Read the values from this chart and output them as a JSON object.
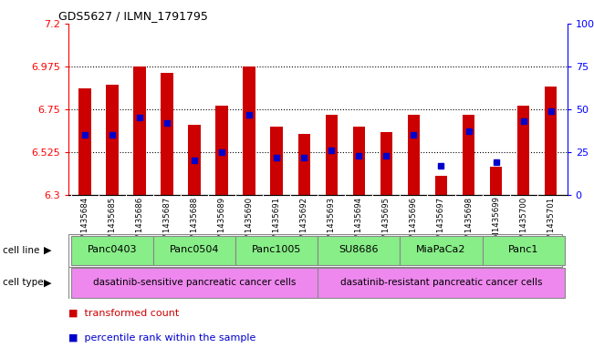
{
  "title": "GDS5627 / ILMN_1791795",
  "samples": [
    "GSM1435684",
    "GSM1435685",
    "GSM1435686",
    "GSM1435687",
    "GSM1435688",
    "GSM1435689",
    "GSM1435690",
    "GSM1435691",
    "GSM1435692",
    "GSM1435693",
    "GSM1435694",
    "GSM1435695",
    "GSM1435696",
    "GSM1435697",
    "GSM1435698",
    "GSM1435699",
    "GSM1435700",
    "GSM1435701"
  ],
  "transformed_counts": [
    6.86,
    6.88,
    6.975,
    6.94,
    6.67,
    6.77,
    6.975,
    6.66,
    6.62,
    6.72,
    6.66,
    6.63,
    6.72,
    6.4,
    6.72,
    6.45,
    6.77,
    6.87
  ],
  "percentile_ranks": [
    35,
    35,
    45,
    42,
    20,
    25,
    47,
    22,
    22,
    26,
    23,
    23,
    35,
    17,
    37,
    19,
    43,
    49
  ],
  "ymin": 6.3,
  "ymax": 7.2,
  "yticks": [
    6.3,
    6.525,
    6.75,
    6.975,
    7.2
  ],
  "ytick_labels": [
    "6.3",
    "6.525",
    "6.75",
    "6.975",
    "7.2"
  ],
  "right_yticks": [
    0,
    25,
    50,
    75,
    100
  ],
  "right_ytick_labels": [
    "0",
    "25",
    "50",
    "75",
    "100%"
  ],
  "bar_color": "#cc0000",
  "marker_color": "#0000cc",
  "bar_width": 0.45,
  "cell_lines": [
    {
      "name": "Panc0403",
      "start": 0,
      "end": 3
    },
    {
      "name": "Panc0504",
      "start": 3,
      "end": 6
    },
    {
      "name": "Panc1005",
      "start": 6,
      "end": 9
    },
    {
      "name": "SU8686",
      "start": 9,
      "end": 12
    },
    {
      "name": "MiaPaCa2",
      "start": 12,
      "end": 15
    },
    {
      "name": "Panc1",
      "start": 15,
      "end": 18
    }
  ],
  "cell_line_bg": "#88ee88",
  "cell_type_bg": "#ee88ee",
  "cell_type_sensitive": "dasatinib-sensitive pancreatic cancer cells",
  "cell_type_resistant": "dasatinib-resistant pancreatic cancer cells",
  "sample_bg": "#cccccc",
  "legend_bar_color": "#cc0000",
  "legend_marker_color": "#0000cc"
}
